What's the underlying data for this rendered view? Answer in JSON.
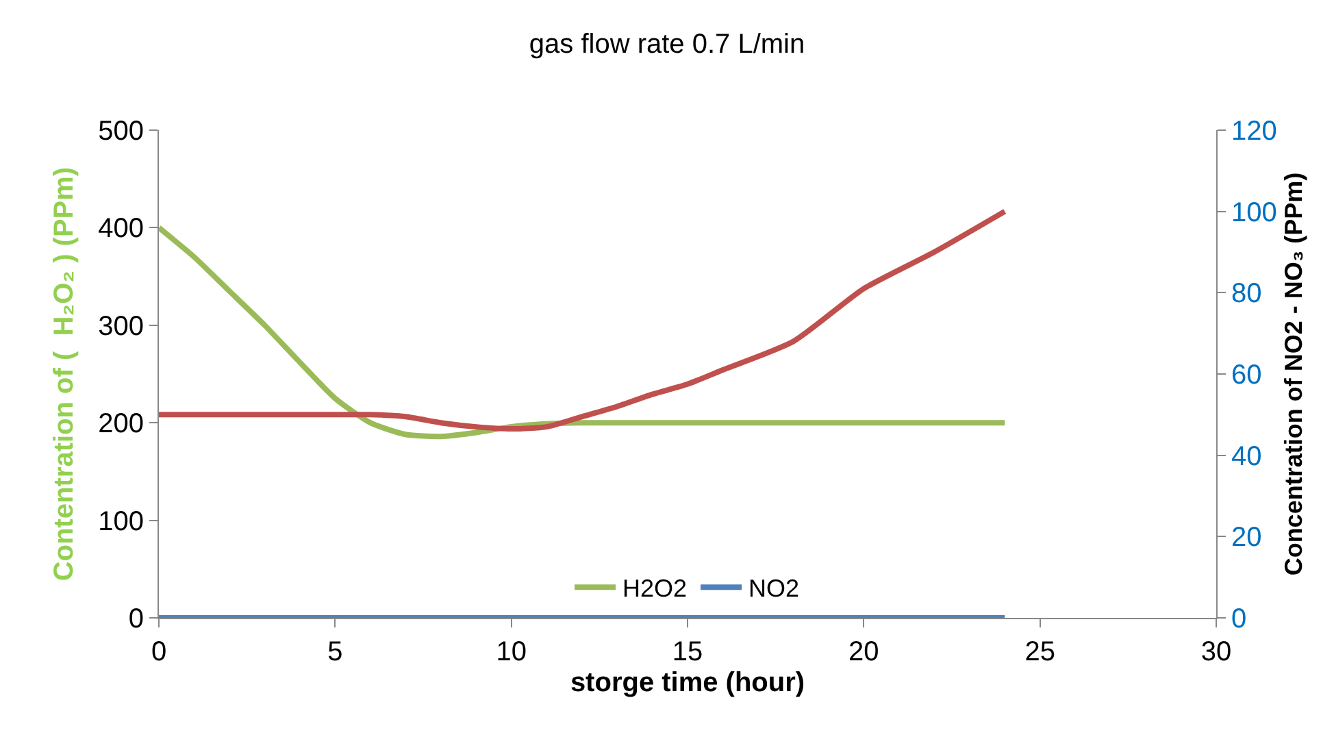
{
  "chart_data": {
    "type": "line",
    "title": "gas flow rate 0.7 L/min",
    "xlabel": "storge time (hour)",
    "ylabel": "Contentration of (  H₂O₂ ) (PPm)",
    "y2label": "Concentration of NO2 - NO₃ (PPm)",
    "x": [
      0,
      1,
      2,
      3,
      4,
      5,
      6,
      7,
      8,
      9,
      10,
      11,
      12,
      13,
      14,
      15,
      16,
      18,
      20,
      22,
      24
    ],
    "series": [
      {
        "name": "H2O2",
        "color": "#9bbb59",
        "values": [
          400,
          370,
          335,
          300,
          262,
          225,
          200,
          188,
          186,
          190,
          196,
          199,
          200,
          200,
          200,
          200,
          200,
          200,
          200,
          200,
          200
        ]
      },
      {
        "name": "NO2",
        "color": "#4f81bd",
        "axis": "y2",
        "values": [
          0,
          0,
          0,
          0,
          0,
          0,
          0,
          0,
          0,
          0,
          0,
          0,
          0,
          0,
          0,
          0,
          0,
          0,
          0,
          0,
          0
        ]
      },
      {
        "color": "#c0504d",
        "axis": "y2",
        "values": [
          50,
          50,
          50,
          50,
          50,
          50,
          50,
          49.5,
          48,
          47,
          46.5,
          47,
          49.5,
          52,
          55,
          57.5,
          61,
          68,
          81,
          90,
          100
        ]
      }
    ],
    "xlim": [
      0,
      30
    ],
    "xticks": [
      0,
      5,
      10,
      15,
      20,
      25,
      30
    ],
    "ylim": [
      0,
      500
    ],
    "yticks": [
      0,
      100,
      200,
      300,
      400,
      500
    ],
    "y2lim": [
      0,
      120
    ],
    "y2ticks": [
      0,
      20,
      40,
      60,
      80,
      100,
      120
    ],
    "grid": false,
    "legend": "bottom",
    "marker": "none",
    "line_style": "solid"
  }
}
